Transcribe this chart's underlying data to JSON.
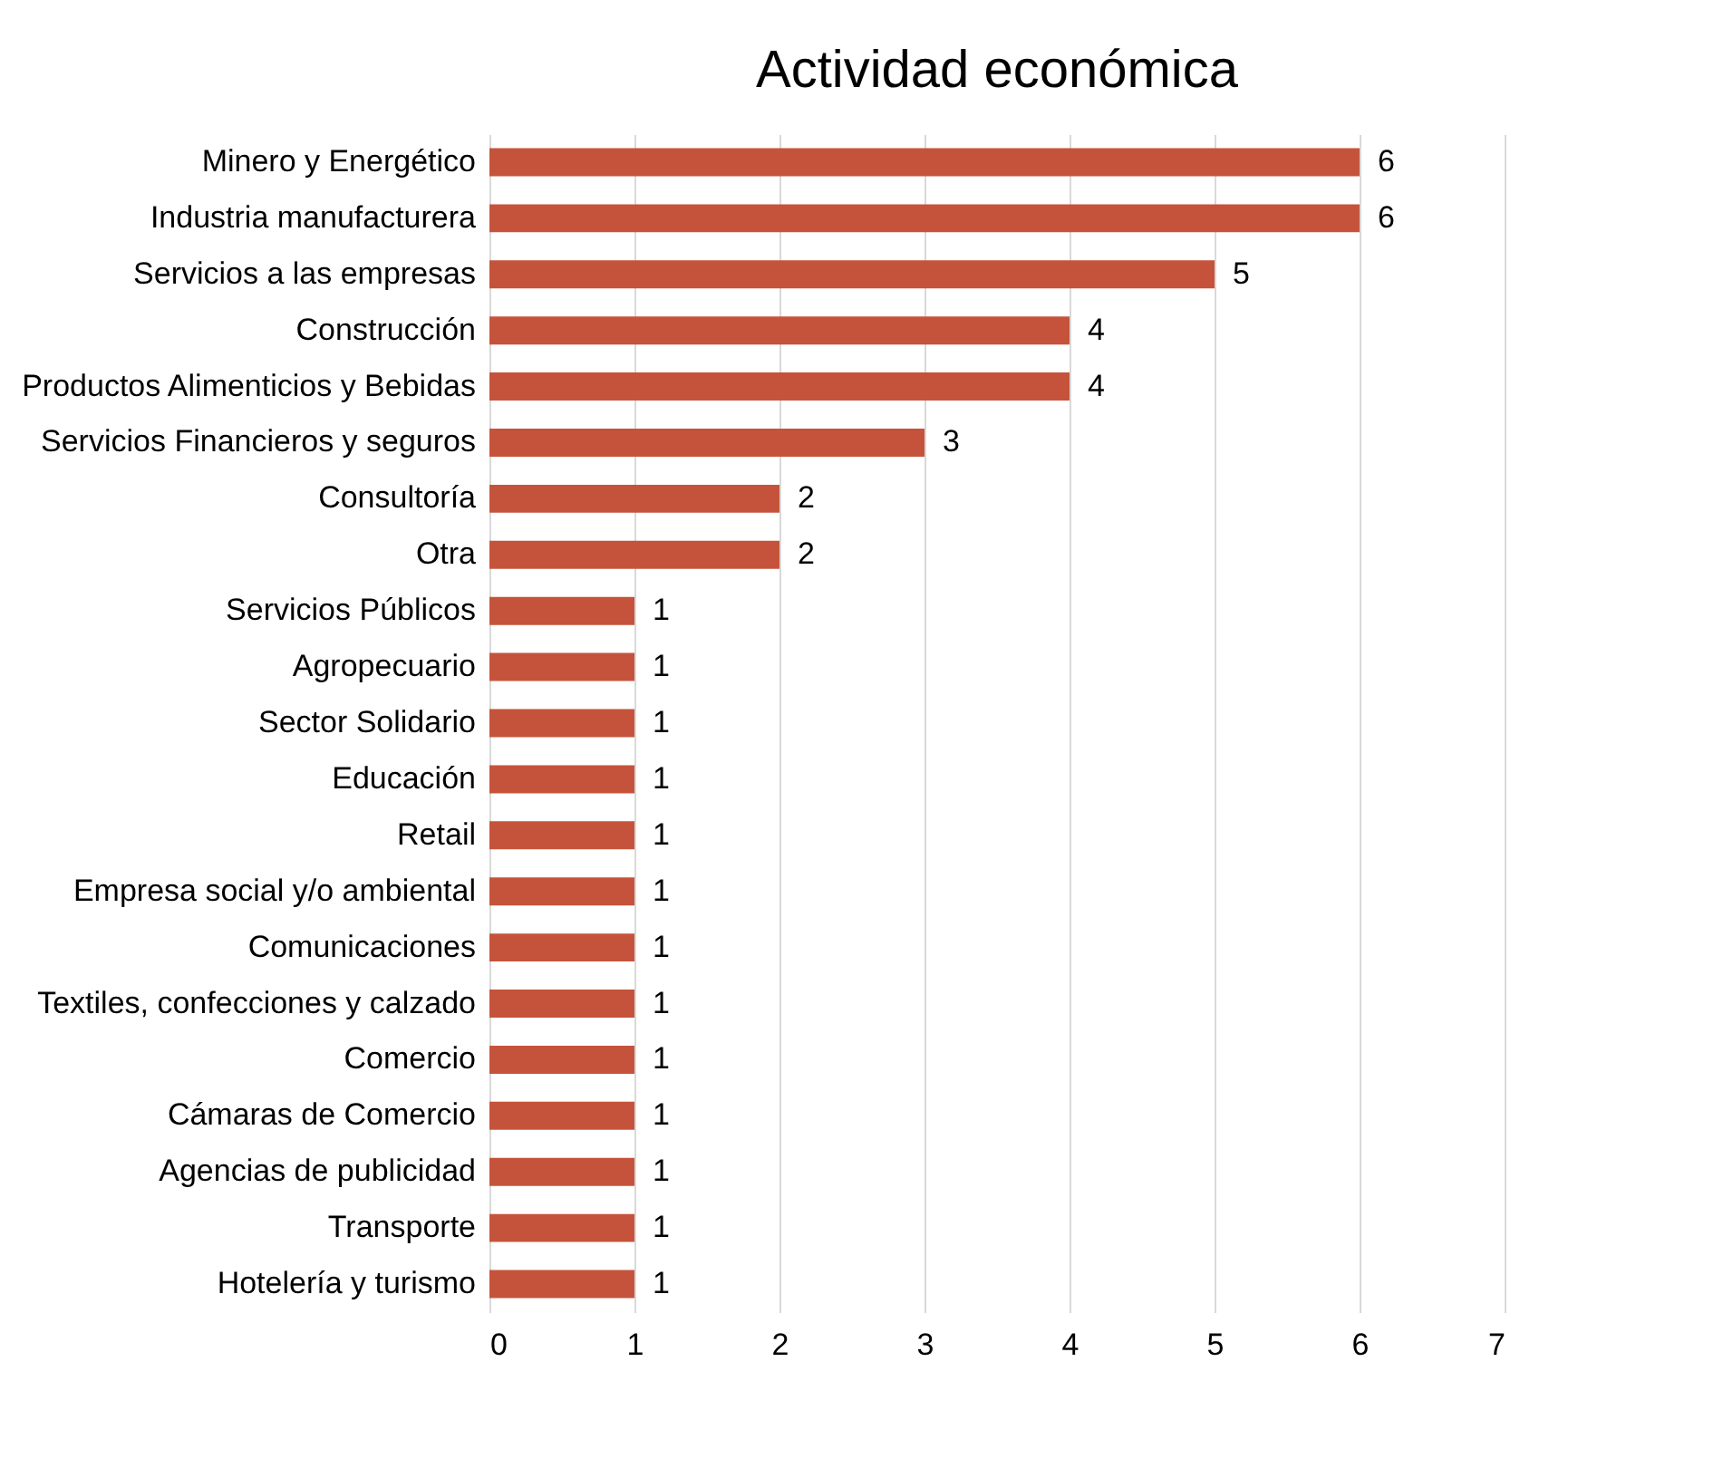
{
  "chart_data": {
    "type": "bar",
    "orientation": "horizontal",
    "title": "Actividad económica",
    "categories": [
      "Minero y Energético",
      "Industria manufacturera",
      "Servicios a las empresas",
      "Construcción",
      "Productos Alimenticios y Bebidas",
      "Servicios Financieros y seguros",
      "Consultoría",
      "Otra",
      "Servicios Públicos",
      "Agropecuario",
      "Sector Solidario",
      "Educación",
      "Retail",
      "Empresa social y/o ambiental",
      "Comunicaciones",
      "Textiles, confecciones y calzado",
      "Comercio",
      "Cámaras de Comercio",
      "Agencias de publicidad",
      "Transporte",
      "Hotelería y turismo"
    ],
    "values": [
      6,
      6,
      5,
      4,
      4,
      3,
      2,
      2,
      1,
      1,
      1,
      1,
      1,
      1,
      1,
      1,
      1,
      1,
      1,
      1,
      1
    ],
    "color": "#c5533b",
    "xlim": [
      0,
      7
    ],
    "xticks": [
      0,
      1,
      2,
      3,
      4,
      5,
      6,
      7
    ],
    "grid": "x",
    "data_labels": true
  }
}
